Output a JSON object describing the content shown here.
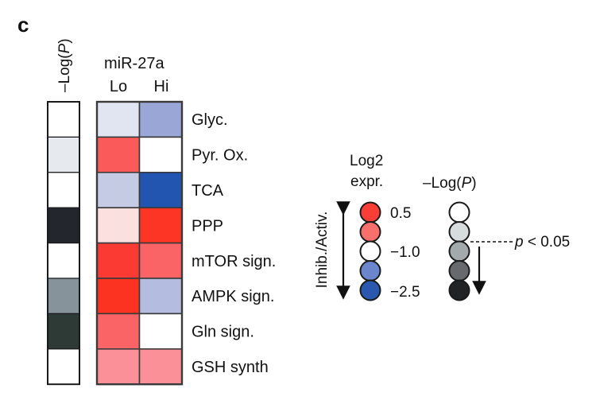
{
  "panel_label": "c",
  "pval_column_label": "–Log(",
  "pval_column_label_italic": "P",
  "pval_column_label_close": ")",
  "group_title": "miR-27a",
  "chart_data": {
    "type": "heatmap",
    "rows": [
      "Glyc.",
      "Pyr. Ox.",
      "TCA",
      "PPP",
      "mTOR sign.",
      "AMPK sign.",
      "Gln sign.",
      "GSH synth"
    ],
    "columns": [
      "Lo",
      "Hi"
    ],
    "log2_expression": [
      [
        -1.3,
        -2.0
      ],
      [
        0.3,
        -1.0
      ],
      [
        -1.6,
        -2.5
      ],
      [
        -0.2,
        0.6
      ],
      [
        0.5,
        0.2
      ],
      [
        0.6,
        -1.6
      ],
      [
        0.2,
        -1.0
      ],
      [
        0.0,
        0.0
      ]
    ],
    "cell_colors": [
      [
        "#e1e5f2",
        "#9aa6d6"
      ],
      [
        "#fa5a5a",
        "#ffffff"
      ],
      [
        "#c6cbe4",
        "#2255b0"
      ],
      [
        "#fbe0e0",
        "#fc3524"
      ],
      [
        "#fa3a33",
        "#fa6466"
      ],
      [
        "#fc3321",
        "#b4bde0"
      ],
      [
        "#fa6466",
        "#ffffff"
      ],
      [
        "#fb9098",
        "#fb9098"
      ]
    ],
    "neg_log_p_colors": [
      "#ffffff",
      "#e6eaee",
      "#ffffff",
      "#23262c",
      "#ffffff",
      "#87939a",
      "#2d3a36",
      "#ffffff"
    ],
    "expr_legend": {
      "title_line1": "Log2",
      "title_line2": "expr.",
      "axis_label": "Inhib./Activ.",
      "ticks": [
        "0.5",
        "−1.0",
        "−2.5"
      ],
      "colors": [
        "#f83e37",
        "#f8706c",
        "#ffffff",
        "#6b86cc",
        "#2a58ae"
      ]
    },
    "p_legend": {
      "title": "–Log(",
      "title_italic": "P",
      "title_close": ")",
      "colors": [
        "#ffffff",
        "#d8dcdc",
        "#a4a9ab",
        "#67696c",
        "#222325"
      ],
      "threshold_p": "p",
      "threshold_rest": " < 0.05"
    }
  }
}
